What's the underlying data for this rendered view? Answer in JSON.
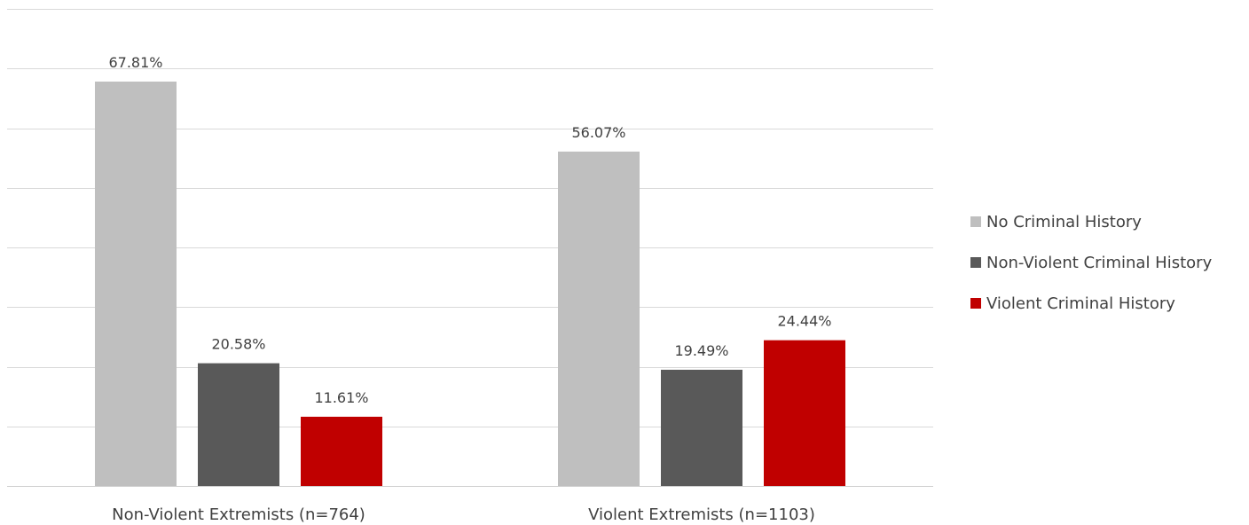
{
  "chart_data": {
    "type": "bar",
    "title": "",
    "xlabel": "",
    "ylabel": "",
    "ylim": [
      0,
      80
    ],
    "grid": true,
    "legend_position": "right",
    "categories": [
      "Non-Violent Extremists (n=764)",
      "Violent Extremists (n=1103)"
    ],
    "series": [
      {
        "name": "No Criminal History",
        "color": "#bfbfbf",
        "values": [
          67.81,
          56.07
        ],
        "labels": [
          "67.81%",
          "56.07%"
        ]
      },
      {
        "name": "Non-Violent Criminal History",
        "color": "#595959",
        "values": [
          20.58,
          19.49
        ],
        "labels": [
          "20.58%",
          "19.49%"
        ]
      },
      {
        "name": "Violent Criminal History",
        "color": "#c00000",
        "values": [
          11.61,
          24.44
        ],
        "labels": [
          "11.61%",
          "24.44%"
        ]
      }
    ]
  }
}
